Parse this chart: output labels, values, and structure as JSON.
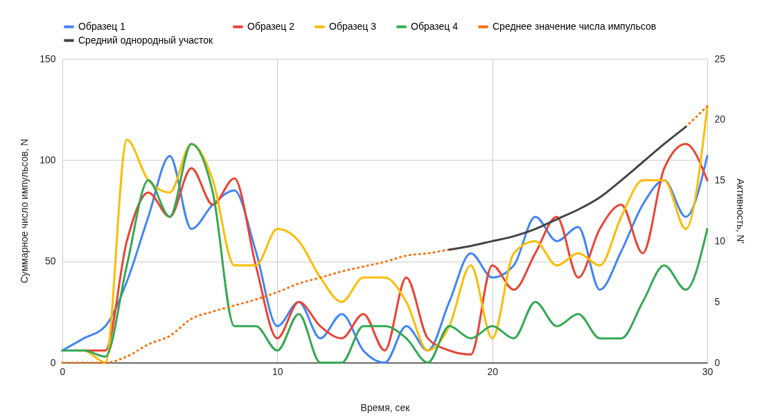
{
  "chart_data": {
    "type": "line",
    "xlabel": "Время, сек",
    "ylabel": "Суммарное число импульсов, N",
    "y2label": "Активность, N'",
    "x": [
      0,
      1,
      2,
      3,
      4,
      5,
      6,
      7,
      8,
      9,
      10,
      11,
      12,
      13,
      14,
      15,
      16,
      17,
      18,
      19,
      20,
      21,
      22,
      23,
      24,
      25,
      26,
      27,
      28,
      29,
      30
    ],
    "xlim": [
      0,
      30
    ],
    "xticks": [
      0,
      10,
      20,
      30
    ],
    "ylim": [
      0,
      150
    ],
    "yticks": [
      0,
      50,
      100,
      150
    ],
    "y2lim": [
      0,
      25
    ],
    "y2ticks": [
      0,
      5,
      10,
      15,
      20,
      25
    ],
    "grid": true,
    "legend": "top",
    "marker": "none",
    "series": [
      {
        "name": "Образец 1",
        "color": "#4285f4",
        "values": [
          6,
          12,
          18,
          40,
          72,
          102,
          66,
          78,
          85,
          55,
          18,
          30,
          12,
          24,
          6,
          0,
          18,
          6,
          30,
          54,
          42,
          48,
          72,
          60,
          67,
          36,
          55,
          78,
          90,
          72,
          102
        ]
      },
      {
        "name": "Образец 2",
        "color": "#ea4335",
        "values": [
          6,
          6,
          6,
          60,
          84,
          72,
          96,
          78,
          91,
          48,
          12,
          30,
          18,
          12,
          24,
          6,
          42,
          12,
          6,
          4,
          48,
          36,
          54,
          72,
          42,
          66,
          78,
          54,
          96,
          108,
          90
        ]
      },
      {
        "name": "Образец 3",
        "color": "#fbbc04",
        "values": [
          6,
          6,
          0,
          110,
          90,
          84,
          108,
          90,
          48,
          48,
          66,
          60,
          42,
          30,
          42,
          42,
          30,
          6,
          18,
          48,
          12,
          54,
          60,
          48,
          54,
          48,
          72,
          90,
          90,
          66,
          126
        ]
      },
      {
        "name": "Образец 4",
        "color": "#34a853",
        "values": [
          6,
          6,
          3,
          48,
          90,
          72,
          108,
          84,
          18,
          18,
          6,
          24,
          0,
          0,
          18,
          18,
          12,
          0,
          18,
          12,
          18,
          12,
          30,
          18,
          24,
          12,
          12,
          30,
          48,
          36,
          66
        ]
      },
      {
        "name": "Среднее значение числа импульсов",
        "color": "#ff6d01",
        "axis": "y2",
        "line_style": "dotted",
        "values": [
          0,
          0,
          0,
          0.5,
          1.5,
          2.2,
          3.6,
          4.2,
          4.7,
          5.2,
          5.8,
          6.5,
          7.0,
          7.5,
          7.9,
          8.3,
          8.8,
          9.0,
          9.3,
          null,
          null,
          null,
          null,
          null,
          null,
          null,
          null,
          null,
          null,
          19.4,
          21.1
        ]
      },
      {
        "name": "Средний однородный участок",
        "color": "#434343",
        "axis": "y2",
        "line_style": "solid",
        "values": [
          null,
          null,
          null,
          null,
          null,
          null,
          null,
          null,
          null,
          null,
          null,
          null,
          null,
          null,
          null,
          null,
          null,
          null,
          9.3,
          9.6,
          10.0,
          10.4,
          11.0,
          11.8,
          12.6,
          13.6,
          15.0,
          16.5,
          18.0,
          19.4,
          null
        ]
      }
    ]
  }
}
